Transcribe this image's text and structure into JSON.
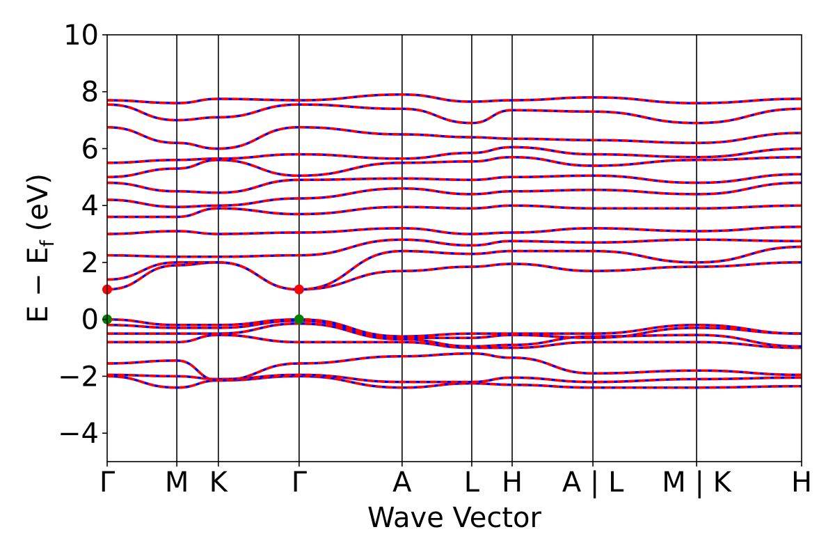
{
  "chart_data": {
    "type": "line",
    "xlabel": "Wave Vector",
    "ylabel": "E − E_f (eV)",
    "ylabel_main": "E  −  E",
    "ylabel_sub": "f",
    "ylabel_unit": " (eV)",
    "ylim": [
      -5,
      10
    ],
    "yticks": [
      {
        "value": -4,
        "label": "−4"
      },
      {
        "value": -2,
        "label": "−2"
      },
      {
        "value": 0,
        "label": "0"
      },
      {
        "value": 2,
        "label": "2"
      },
      {
        "value": 4,
        "label": "4"
      },
      {
        "value": 6,
        "label": "6"
      },
      {
        "value": 8,
        "label": "8"
      },
      {
        "value": 10,
        "label": "10"
      }
    ],
    "xlim": [
      0,
      1
    ],
    "kpoints": [
      {
        "pos": 0.0,
        "label": "Γ"
      },
      {
        "pos": 0.1003,
        "label": "M"
      },
      {
        "pos": 0.1601,
        "label": "K"
      },
      {
        "pos": 0.2764,
        "label": "Γ"
      },
      {
        "pos": 0.4247,
        "label": "A"
      },
      {
        "pos": 0.525,
        "label": "L"
      },
      {
        "pos": 0.5832,
        "label": "H"
      },
      {
        "pos": 0.6995,
        "label": "A | L"
      },
      {
        "pos": 0.8488,
        "label": "M | K"
      },
      {
        "pos": 1.0,
        "label": "H"
      }
    ],
    "grid": false,
    "legend": "none",
    "colors": {
      "spin_up": "#ff0000",
      "spin_down": "#0000ff",
      "vbm": "#008000",
      "cbm": "#ff0000",
      "axis": "#000000"
    },
    "series": [
      {
        "x": [
          0.0,
          0.1003,
          0.1601,
          0.2764,
          0.4247,
          0.525,
          0.5832,
          0.6995,
          0.8488,
          1.0
        ],
        "y": [
          -2.0,
          -2.4,
          -2.15,
          -2.0,
          -2.4,
          -2.25,
          -2.3,
          -2.4,
          -2.4,
          -2.35
        ]
      },
      {
        "x": [
          0.0,
          0.1003,
          0.1601,
          0.2764,
          0.4247,
          0.525,
          0.5832,
          0.6995,
          0.8488,
          1.0
        ],
        "y": [
          -1.95,
          -2.0,
          -2.1,
          -1.95,
          -2.2,
          -2.2,
          -2.05,
          -2.2,
          -2.1,
          -2.05
        ]
      },
      {
        "x": [
          0.0,
          0.1003,
          0.1601,
          0.2764,
          0.4247,
          0.525,
          0.5832,
          0.6995,
          0.8488,
          1.0
        ],
        "y": [
          -1.55,
          -1.45,
          -2.15,
          -1.55,
          -1.3,
          -1.2,
          -1.35,
          -1.9,
          -1.8,
          -1.95
        ]
      },
      {
        "x": [
          0.0,
          0.1003,
          0.1601,
          0.2764,
          0.4247,
          0.525,
          0.5832,
          0.6995,
          0.8488,
          1.0
        ],
        "y": [
          -0.8,
          -0.8,
          -0.55,
          -0.8,
          -0.8,
          -1.0,
          -1.0,
          -0.8,
          -0.8,
          -1.0
        ]
      },
      {
        "x": [
          0.0,
          0.1003,
          0.1601,
          0.2764,
          0.4247,
          0.525,
          0.5832,
          0.6995,
          0.8488,
          1.0
        ],
        "y": [
          -0.5,
          -0.5,
          -0.5,
          -0.15,
          -0.7,
          -0.95,
          -0.9,
          -0.6,
          -0.55,
          -0.95
        ]
      },
      {
        "x": [
          0.0,
          0.1003,
          0.1601,
          0.2764,
          0.4247,
          0.525,
          0.5832,
          0.6995,
          0.8488,
          1.0
        ],
        "y": [
          -0.2,
          -0.3,
          -0.3,
          -0.05,
          -0.65,
          -0.65,
          -0.55,
          -0.65,
          -0.3,
          -0.5
        ]
      },
      {
        "x": [
          0.0,
          0.1003,
          0.1601,
          0.2764,
          0.4247,
          0.525,
          0.5832,
          0.6995,
          0.8488,
          1.0
        ],
        "y": [
          0.0,
          -0.2,
          -0.2,
          0.0,
          -0.6,
          -0.5,
          -0.5,
          -0.5,
          -0.2,
          -0.5
        ]
      },
      {
        "x": [
          0.0,
          0.1003,
          0.1601,
          0.2764,
          0.4247,
          0.525,
          0.5832,
          0.6995,
          0.8488,
          1.0
        ],
        "y": [
          1.05,
          1.9,
          2.0,
          1.05,
          1.7,
          1.85,
          1.95,
          1.7,
          1.85,
          2.0
        ]
      },
      {
        "x": [
          0.0,
          0.1003,
          0.1601,
          0.2764,
          0.4247,
          0.525,
          0.5832,
          0.6995,
          0.8488,
          1.0
        ],
        "y": [
          1.4,
          2.0,
          2.0,
          1.05,
          2.4,
          2.3,
          2.4,
          2.4,
          2.0,
          2.55
        ]
      },
      {
        "x": [
          0.0,
          0.1003,
          0.1601,
          0.2764,
          0.4247,
          0.525,
          0.5832,
          0.6995,
          0.8488,
          1.0
        ],
        "y": [
          2.25,
          2.2,
          2.2,
          2.25,
          2.8,
          2.6,
          2.75,
          2.7,
          2.8,
          2.75
        ]
      },
      {
        "x": [
          0.0,
          0.1003,
          0.1601,
          0.2764,
          0.4247,
          0.525,
          0.5832,
          0.6995,
          0.8488,
          1.0
        ],
        "y": [
          3.0,
          3.1,
          3.0,
          3.05,
          3.2,
          3.0,
          3.05,
          3.2,
          3.1,
          3.25
        ]
      },
      {
        "x": [
          0.0,
          0.1003,
          0.1601,
          0.2764,
          0.4247,
          0.525,
          0.5832,
          0.6995,
          0.8488,
          1.0
        ],
        "y": [
          3.6,
          3.6,
          3.9,
          3.7,
          3.95,
          3.9,
          4.0,
          3.9,
          3.9,
          4.0
        ]
      },
      {
        "x": [
          0.0,
          0.1003,
          0.1601,
          0.2764,
          0.4247,
          0.525,
          0.5832,
          0.6995,
          0.8488,
          1.0
        ],
        "y": [
          4.2,
          3.95,
          4.0,
          4.25,
          4.6,
          4.4,
          4.5,
          4.55,
          4.4,
          4.8
        ]
      },
      {
        "x": [
          0.0,
          0.1003,
          0.1601,
          0.2764,
          0.4247,
          0.525,
          0.5832,
          0.6995,
          0.8488,
          1.0
        ],
        "y": [
          4.8,
          4.5,
          4.45,
          4.9,
          4.95,
          4.9,
          5.0,
          5.05,
          4.8,
          5.1
        ]
      },
      {
        "x": [
          0.0,
          0.1003,
          0.1601,
          0.2764,
          0.4247,
          0.525,
          0.5832,
          0.6995,
          0.8488,
          1.0
        ],
        "y": [
          5.0,
          5.3,
          5.6,
          5.05,
          5.5,
          5.55,
          5.7,
          5.4,
          5.6,
          5.7
        ]
      },
      {
        "x": [
          0.0,
          0.1003,
          0.1601,
          0.2764,
          0.4247,
          0.525,
          0.5832,
          0.6995,
          0.8488,
          1.0
        ],
        "y": [
          5.5,
          5.6,
          5.65,
          5.8,
          5.65,
          5.85,
          6.05,
          5.8,
          5.7,
          6.0
        ]
      },
      {
        "x": [
          0.0,
          0.1003,
          0.1601,
          0.2764,
          0.4247,
          0.525,
          0.5832,
          0.6995,
          0.8488,
          1.0
        ],
        "y": [
          6.75,
          6.2,
          6.0,
          6.75,
          6.5,
          6.4,
          6.35,
          6.3,
          6.2,
          6.55
        ]
      },
      {
        "x": [
          0.0,
          0.1003,
          0.1601,
          0.2764,
          0.4247,
          0.525,
          0.5832,
          0.6995,
          0.8488,
          1.0
        ],
        "y": [
          7.55,
          7.0,
          7.1,
          7.55,
          7.4,
          6.9,
          7.35,
          7.3,
          6.9,
          7.4
        ]
      },
      {
        "x": [
          0.0,
          0.1003,
          0.1601,
          0.2764,
          0.4247,
          0.525,
          0.5832,
          0.6995,
          0.8488,
          1.0
        ],
        "y": [
          7.7,
          7.6,
          7.75,
          7.7,
          7.9,
          7.65,
          7.7,
          7.8,
          7.6,
          7.75
        ]
      }
    ],
    "markers": [
      {
        "x": 0.0,
        "y": 0.0,
        "kind": "vbm"
      },
      {
        "x": 0.2764,
        "y": 0.0,
        "kind": "vbm"
      },
      {
        "x": 0.0,
        "y": 1.05,
        "kind": "cbm"
      },
      {
        "x": 0.2764,
        "y": 1.05,
        "kind": "cbm"
      }
    ]
  }
}
